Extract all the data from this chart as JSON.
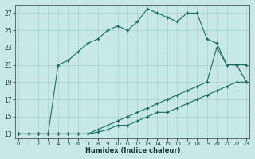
{
  "xlabel": "Humidex (Indice chaleur)",
  "background_color": "#c8e8e8",
  "grid_color": "#a8d0d0",
  "line_color": "#1a6e62",
  "xlim_min": -0.3,
  "xlim_max": 23.3,
  "ylim_min": 12.5,
  "ylim_max": 28.0,
  "xticks": [
    0,
    1,
    2,
    3,
    4,
    5,
    6,
    7,
    8,
    9,
    10,
    11,
    12,
    13,
    14,
    15,
    16,
    17,
    18,
    19,
    20,
    21,
    22,
    23
  ],
  "yticks": [
    13,
    15,
    17,
    19,
    21,
    23,
    25,
    27
  ],
  "line1_x": [
    0,
    1,
    2,
    3,
    4,
    5,
    6,
    7,
    8,
    9,
    10,
    11,
    12,
    13,
    14,
    15,
    16,
    17,
    18,
    19,
    20,
    21,
    22,
    23
  ],
  "line1_y": [
    13,
    13,
    13,
    13,
    13,
    13,
    13,
    13,
    13.2,
    13.5,
    14,
    14,
    14.5,
    15,
    15.5,
    15.5,
    16,
    16.5,
    17,
    17.5,
    18,
    18.5,
    19,
    19
  ],
  "line2_x": [
    0,
    1,
    2,
    3,
    4,
    5,
    6,
    7,
    8,
    9,
    10,
    11,
    12,
    13,
    14,
    15,
    16,
    17,
    18,
    19,
    20,
    21,
    22,
    23
  ],
  "line2_y": [
    13,
    13,
    13,
    13,
    13,
    13,
    13,
    13,
    13.5,
    14,
    14.5,
    15,
    15.5,
    16,
    16.5,
    17,
    17.5,
    18,
    18.5,
    19,
    23,
    21,
    21,
    21
  ],
  "line3_x": [
    0,
    1,
    2,
    3,
    4,
    5,
    6,
    7,
    8,
    9,
    10,
    11,
    12,
    13,
    14,
    15,
    16,
    17,
    18,
    19,
    20,
    21,
    22,
    23
  ],
  "line3_y": [
    13,
    13,
    13,
    13,
    21,
    21.5,
    22.5,
    23.5,
    24,
    25,
    25.5,
    25,
    26,
    27.5,
    27,
    26.5,
    26,
    27,
    27,
    24,
    23.5,
    21,
    21,
    19
  ]
}
